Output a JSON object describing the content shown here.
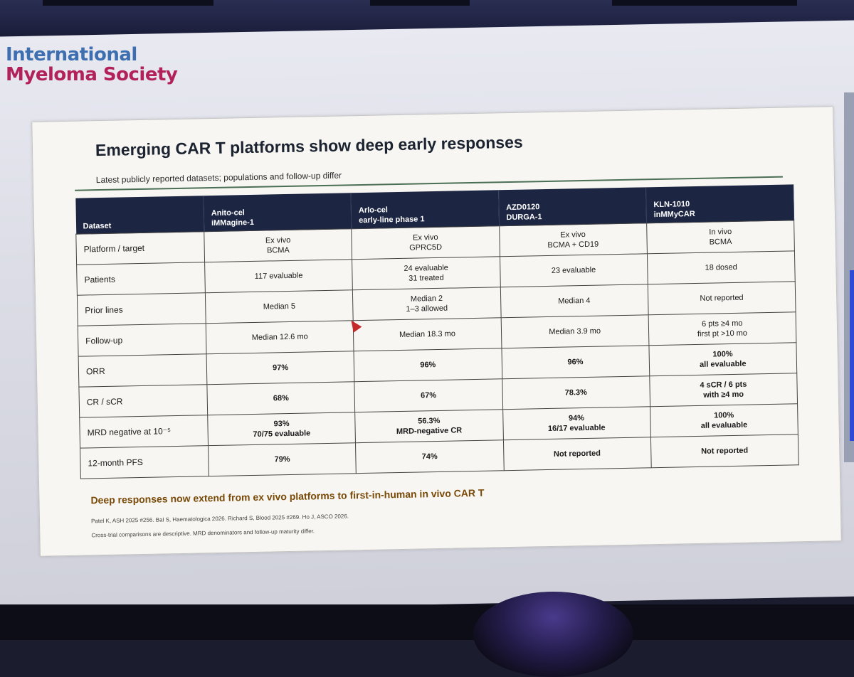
{
  "org_logo": {
    "line1": "International",
    "line2": "Myeloma Society"
  },
  "slide": {
    "title": "Emerging CAR T platforms show deep early responses",
    "subtitle": "Latest publicly reported datasets; populations and follow-up differ",
    "table": {
      "header": {
        "dataset": "Dataset",
        "col1": [
          "Anito-cel",
          "iMMagine-1"
        ],
        "col2": [
          "Arlo-cel",
          "early-line phase 1"
        ],
        "col3": [
          "AZD0120",
          "DURGA-1"
        ],
        "col4": [
          "KLN-1010",
          "inMMyCAR"
        ]
      },
      "rows": [
        {
          "label": "Platform / target",
          "c1": [
            "Ex vivo",
            "BCMA"
          ],
          "c2": [
            "Ex vivo",
            "GPRC5D"
          ],
          "c3": [
            "Ex vivo",
            "BCMA + CD19"
          ],
          "c4": [
            "In vivo",
            "BCMA"
          ]
        },
        {
          "label": "Patients",
          "c1": [
            "117 evaluable"
          ],
          "c2": [
            "24 evaluable",
            "31 treated"
          ],
          "c3": [
            "23 evaluable"
          ],
          "c4": [
            "18 dosed"
          ]
        },
        {
          "label": "Prior lines",
          "c1": [
            "Median 5"
          ],
          "c2": [
            "Median 2",
            "1–3 allowed"
          ],
          "c3": [
            "Median 4"
          ],
          "c4": [
            "Not reported"
          ]
        },
        {
          "label": "Follow-up",
          "c1": [
            "Median 12.6 mo"
          ],
          "c2": [
            "Median 18.3 mo"
          ],
          "c3": [
            "Median 3.9 mo"
          ],
          "c4": [
            "6 pts ≥4 mo",
            "first pt >10 mo"
          ]
        },
        {
          "label": "ORR",
          "c1": [
            "97%"
          ],
          "c2": [
            "96%"
          ],
          "c3": [
            "96%"
          ],
          "c4": [
            "100%",
            "all evaluable"
          ]
        },
        {
          "label": "CR / sCR",
          "c1": [
            "68%"
          ],
          "c2": [
            "67%"
          ],
          "c3": [
            "78.3%"
          ],
          "c4": [
            "4 sCR / 6 pts",
            "with ≥4 mo"
          ]
        },
        {
          "label": "MRD negative at 10⁻⁵",
          "c1": [
            "93%",
            "70/75 evaluable"
          ],
          "c2": [
            "56.3%",
            "MRD-negative CR"
          ],
          "c3": [
            "94%",
            "16/17 evaluable"
          ],
          "c4": [
            "100%",
            "all evaluable"
          ]
        },
        {
          "label": "12-month PFS",
          "c1": [
            "79%"
          ],
          "c2": [
            "74%"
          ],
          "c3": [
            "Not reported"
          ],
          "c4": [
            "Not reported"
          ]
        }
      ]
    },
    "takeaway": "Deep responses now extend from ex vivo platforms to first-in-human in vivo CAR T",
    "references": "Patel K, ASH 2025 #256.  Bal S, Haematologica 2026.  Richard S, Blood 2025 #269.  Ho J, ASCO 2026.",
    "note": "Cross-trial comparisons are descriptive. MRD denominators and follow-up maturity differ."
  },
  "colors": {
    "header_bg": "#1c2542",
    "takeaway": "#7a4a08",
    "logo_blue": "#3d6fb0",
    "logo_magenta": "#b2215a",
    "pointer": "#c42a2a"
  }
}
